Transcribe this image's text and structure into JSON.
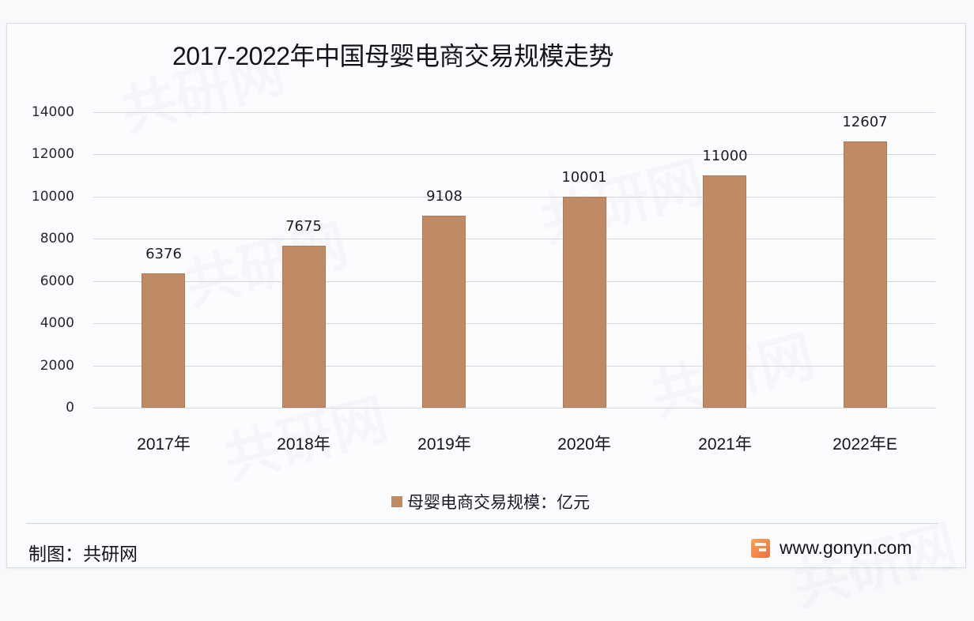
{
  "chart_data": {
    "type": "bar",
    "title": "2017-2022年中国母婴电商交易规模走势",
    "categories": [
      "2017年",
      "2018年",
      "2019年",
      "2020年",
      "2021年",
      "2022年E"
    ],
    "series": [
      {
        "name": "母婴电商交易规模：亿元",
        "values": [
          6376,
          7675,
          9108,
          10001,
          11000,
          12607
        ],
        "color": "#c08b64"
      }
    ],
    "value_labels": [
      "6376",
      "7675",
      "9108",
      "10001",
      "11000",
      "12607"
    ],
    "xlabel": "",
    "ylabel": "",
    "ylim": [
      0,
      14000
    ],
    "yticks": [
      "0",
      "2000",
      "4000",
      "6000",
      "8000",
      "10000",
      "12000",
      "14000"
    ],
    "grid": true,
    "legend_position": "bottom"
  },
  "footer": {
    "source_label": "制图：共研网",
    "website": "www.gonyn.com"
  },
  "watermark": "共研网"
}
